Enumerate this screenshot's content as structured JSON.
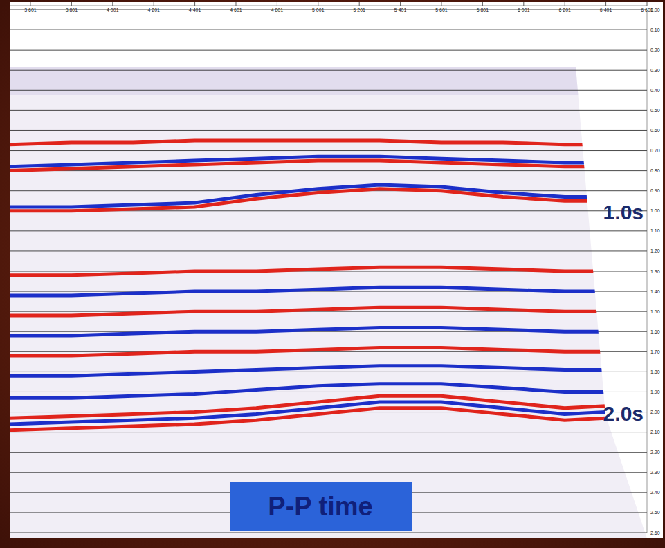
{
  "chart_data": {
    "type": "seismic_section",
    "title": "P-P time",
    "annotations": [
      {
        "text": "1.0s",
        "y": 1.0
      },
      {
        "text": "2.0s",
        "y": 2.0
      }
    ],
    "x": [
      3500,
      3800,
      4100,
      4400,
      4700,
      5000,
      5300,
      5600,
      5900,
      6200,
      6400
    ],
    "series": [
      {
        "color": "#e0241c",
        "values": [
          0.67,
          0.66,
          0.66,
          0.65,
          0.65,
          0.65,
          0.65,
          0.66,
          0.66,
          0.67,
          0.67
        ]
      },
      {
        "color": "#1c2fc8",
        "values": [
          0.78,
          0.77,
          0.76,
          0.75,
          0.74,
          0.73,
          0.73,
          0.74,
          0.75,
          0.76,
          0.76
        ]
      },
      {
        "color": "#e0241c",
        "values": [
          0.8,
          0.79,
          0.78,
          0.77,
          0.76,
          0.75,
          0.75,
          0.76,
          0.77,
          0.78,
          0.78
        ]
      },
      {
        "color": "#1c2fc8",
        "values": [
          0.98,
          0.98,
          0.97,
          0.96,
          0.92,
          0.89,
          0.87,
          0.88,
          0.91,
          0.93,
          0.93
        ]
      },
      {
        "color": "#e0241c",
        "values": [
          1.0,
          1.0,
          0.99,
          0.98,
          0.94,
          0.91,
          0.89,
          0.9,
          0.93,
          0.95,
          0.95
        ]
      },
      {
        "color": "#e0241c",
        "values": [
          1.32,
          1.32,
          1.31,
          1.3,
          1.3,
          1.29,
          1.28,
          1.28,
          1.29,
          1.3,
          1.3
        ]
      },
      {
        "color": "#1c2fc8",
        "values": [
          1.42,
          1.42,
          1.41,
          1.4,
          1.4,
          1.39,
          1.38,
          1.38,
          1.39,
          1.4,
          1.4
        ]
      },
      {
        "color": "#e0241c",
        "values": [
          1.52,
          1.52,
          1.51,
          1.5,
          1.5,
          1.49,
          1.48,
          1.48,
          1.49,
          1.5,
          1.5
        ]
      },
      {
        "color": "#1c2fc8",
        "values": [
          1.62,
          1.62,
          1.61,
          1.6,
          1.6,
          1.59,
          1.58,
          1.58,
          1.59,
          1.6,
          1.6
        ]
      },
      {
        "color": "#e0241c",
        "values": [
          1.72,
          1.72,
          1.71,
          1.7,
          1.7,
          1.69,
          1.68,
          1.68,
          1.69,
          1.7,
          1.7
        ]
      },
      {
        "color": "#1c2fc8",
        "values": [
          1.82,
          1.82,
          1.81,
          1.8,
          1.79,
          1.78,
          1.77,
          1.77,
          1.78,
          1.79,
          1.79
        ]
      },
      {
        "color": "#1c2fc8",
        "values": [
          1.93,
          1.93,
          1.92,
          1.91,
          1.89,
          1.87,
          1.86,
          1.86,
          1.88,
          1.9,
          1.9
        ]
      },
      {
        "color": "#e0241c",
        "values": [
          2.03,
          2.02,
          2.01,
          2.0,
          1.98,
          1.95,
          1.92,
          1.92,
          1.95,
          1.98,
          1.97
        ]
      },
      {
        "color": "#1c2fc8",
        "values": [
          2.06,
          2.05,
          2.04,
          2.03,
          2.01,
          1.98,
          1.95,
          1.95,
          1.98,
          2.01,
          2.0
        ]
      },
      {
        "color": "#e0241c",
        "values": [
          2.09,
          2.08,
          2.07,
          2.06,
          2.04,
          2.01,
          1.98,
          1.98,
          2.01,
          2.04,
          2.03
        ]
      }
    ],
    "xlim": [
      3500,
      6601
    ],
    "xticks": [
      {
        "value": 3601,
        "label": "3 601"
      },
      {
        "value": 3801,
        "label": "3 801"
      },
      {
        "value": 4001,
        "label": "4 001"
      },
      {
        "value": 4201,
        "label": "4 201"
      },
      {
        "value": 4401,
        "label": "4 401"
      },
      {
        "value": 4601,
        "label": "4 601"
      },
      {
        "value": 4801,
        "label": "4 801"
      },
      {
        "value": 5001,
        "label": "5 001"
      },
      {
        "value": 5201,
        "label": "5 201"
      },
      {
        "value": 5401,
        "label": "5 401"
      },
      {
        "value": 5601,
        "label": "5 601"
      },
      {
        "value": 5801,
        "label": "5 801"
      },
      {
        "value": 6001,
        "label": "6 001"
      },
      {
        "value": 6201,
        "label": "6 201"
      },
      {
        "value": 6401,
        "label": "6 401"
      },
      {
        "value": 6601,
        "label": "6 601"
      }
    ],
    "ylim": [
      0,
      2.6
    ],
    "yticks": [
      {
        "value": 0,
        "label": "0.00"
      },
      {
        "value": 0.1,
        "label": "0.10"
      },
      {
        "value": 0.2,
        "label": "0.20"
      },
      {
        "value": 0.3,
        "label": "0.30"
      },
      {
        "value": 0.4,
        "label": "0.40"
      },
      {
        "value": 0.5,
        "label": "0.50"
      },
      {
        "value": 0.6,
        "label": "0.60"
      },
      {
        "value": 0.7,
        "label": "0.70"
      },
      {
        "value": 0.8,
        "label": "0.80"
      },
      {
        "value": 0.9,
        "label": "0.90"
      },
      {
        "value": 1.0,
        "label": "1.00"
      },
      {
        "value": 1.1,
        "label": "1.10"
      },
      {
        "value": 1.2,
        "label": "1.20"
      },
      {
        "value": 1.3,
        "label": "1.30"
      },
      {
        "value": 1.4,
        "label": "1.40"
      },
      {
        "value": 1.5,
        "label": "1.50"
      },
      {
        "value": 1.6,
        "label": "1.60"
      },
      {
        "value": 1.7,
        "label": "1.70"
      },
      {
        "value": 1.8,
        "label": "1.80"
      },
      {
        "value": 1.9,
        "label": "1.90"
      },
      {
        "value": 2.0,
        "label": "2.00"
      },
      {
        "value": 2.1,
        "label": "2.10"
      },
      {
        "value": 2.2,
        "label": "2.20"
      },
      {
        "value": 2.3,
        "label": "2.30"
      },
      {
        "value": 2.4,
        "label": "2.40"
      },
      {
        "value": 2.5,
        "label": "2.50"
      },
      {
        "value": 2.6,
        "label": "2.60"
      }
    ],
    "grid": true
  }
}
